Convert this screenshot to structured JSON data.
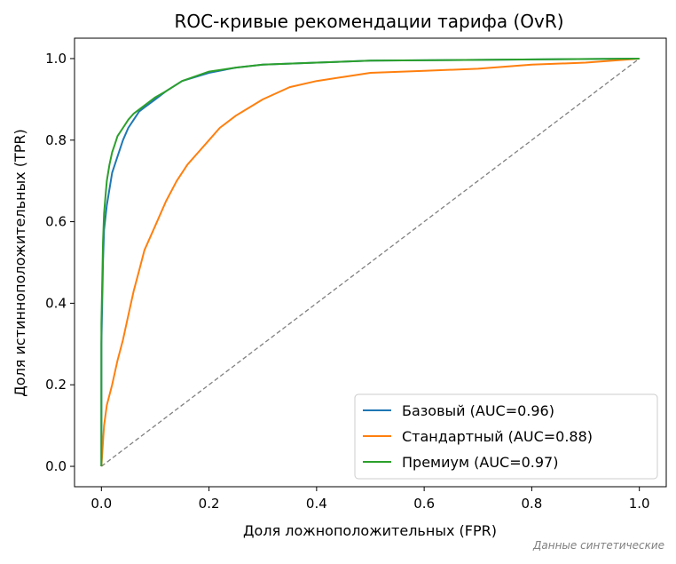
{
  "chart_data": {
    "type": "line",
    "title": "ROC-кривые рекомендации тарифа (OvR)",
    "xlabel": "Доля ложноположительных (FPR)",
    "ylabel": "Доля истинноположительных (TPR)",
    "xlim": [
      -0.05,
      1.05
    ],
    "ylim": [
      -0.05,
      1.05
    ],
    "xticks": [
      "0.0",
      "0.2",
      "0.4",
      "0.6",
      "0.8",
      "1.0"
    ],
    "yticks": [
      "0.0",
      "0.2",
      "0.4",
      "0.6",
      "0.8",
      "1.0"
    ],
    "xtick_values": [
      0,
      0.2,
      0.4,
      0.6,
      0.8,
      1.0
    ],
    "ytick_values": [
      0,
      0.2,
      0.4,
      0.6,
      0.8,
      1.0
    ],
    "grid": false,
    "legend_position": "lower-right",
    "diagonal": {
      "x": [
        0,
        1
      ],
      "y": [
        0,
        1
      ],
      "color": "#808080",
      "style": "dashed"
    },
    "series": [
      {
        "name": "Базовый (AUC=0.96)",
        "color": "#1f77b4",
        "x": [
          0,
          0.0,
          0.003,
          0.005,
          0.01,
          0.015,
          0.02,
          0.03,
          0.04,
          0.05,
          0.06,
          0.07,
          0.08,
          0.1,
          0.12,
          0.15,
          0.2,
          0.25,
          0.3,
          0.4,
          0.5,
          1.0
        ],
        "y": [
          0,
          0.3,
          0.5,
          0.58,
          0.64,
          0.68,
          0.72,
          0.76,
          0.8,
          0.83,
          0.85,
          0.87,
          0.88,
          0.9,
          0.92,
          0.945,
          0.965,
          0.978,
          0.985,
          0.99,
          0.995,
          1.0
        ]
      },
      {
        "name": "Стандартный (AUC=0.88)",
        "color": "#ff7f0e",
        "x": [
          0,
          0.005,
          0.01,
          0.02,
          0.03,
          0.04,
          0.05,
          0.06,
          0.07,
          0.08,
          0.1,
          0.12,
          0.14,
          0.16,
          0.18,
          0.2,
          0.22,
          0.25,
          0.3,
          0.35,
          0.4,
          0.45,
          0.5,
          0.6,
          0.7,
          0.8,
          0.9,
          1.0
        ],
        "y": [
          0,
          0.1,
          0.15,
          0.2,
          0.26,
          0.31,
          0.37,
          0.43,
          0.48,
          0.53,
          0.59,
          0.65,
          0.7,
          0.74,
          0.77,
          0.8,
          0.83,
          0.86,
          0.9,
          0.93,
          0.945,
          0.955,
          0.965,
          0.97,
          0.975,
          0.985,
          0.99,
          1.0
        ]
      },
      {
        "name": "Премиум (AUC=0.97)",
        "color": "#2ca02c",
        "x": [
          0,
          0.0,
          0.003,
          0.005,
          0.008,
          0.01,
          0.015,
          0.02,
          0.025,
          0.03,
          0.04,
          0.05,
          0.06,
          0.07,
          0.08,
          0.1,
          0.12,
          0.15,
          0.2,
          0.25,
          0.3,
          0.4,
          0.5,
          1.0
        ],
        "y": [
          0,
          0.35,
          0.55,
          0.62,
          0.67,
          0.7,
          0.74,
          0.77,
          0.79,
          0.81,
          0.83,
          0.85,
          0.865,
          0.875,
          0.885,
          0.905,
          0.92,
          0.945,
          0.968,
          0.978,
          0.985,
          0.99,
          0.995,
          1.0
        ]
      }
    ]
  },
  "footnote": "Данные синтетические"
}
